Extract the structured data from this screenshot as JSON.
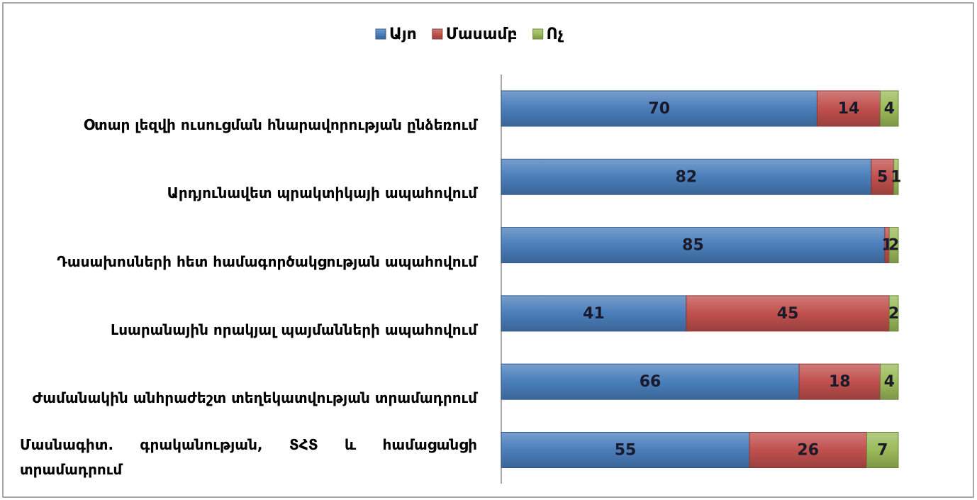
{
  "chart_data": {
    "type": "bar",
    "orientation": "horizontal",
    "stacked": true,
    "categories": [
      "Օտար լեզվի ուսուցման հնարավորության ընձեռում",
      "Արդյունավետ պրակտիկայի ապահովում",
      "Դասախոսների հետ համագործակցության ապահովում",
      "Լսարանային որակյալ պայմանների ապահովում",
      "Ժամանակին անհրաժեշտ տեղեկատվության տրամադրում",
      "Մասնագիտ. գրականության, ՏՀՏ և համացանցի տրամադրում"
    ],
    "series": [
      {
        "name": "Այո",
        "color": "#4a7ebb",
        "values": [
          70,
          82,
          85,
          41,
          66,
          55
        ]
      },
      {
        "name": "Մասամբ",
        "color": "#c0504d",
        "values": [
          14,
          5,
          1,
          45,
          18,
          26
        ]
      },
      {
        "name": "Ոչ",
        "color": "#9bbb59",
        "values": [
          4,
          1,
          2,
          2,
          4,
          7
        ]
      }
    ],
    "legend": "top"
  }
}
